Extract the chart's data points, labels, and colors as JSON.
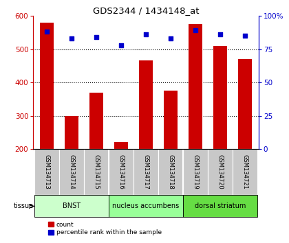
{
  "title": "GDS2344 / 1434148_at",
  "samples": [
    "GSM134713",
    "GSM134714",
    "GSM134715",
    "GSM134716",
    "GSM134717",
    "GSM134718",
    "GSM134719",
    "GSM134720",
    "GSM134721"
  ],
  "counts": [
    580,
    300,
    370,
    220,
    465,
    375,
    575,
    510,
    470
  ],
  "percentiles": [
    88,
    83,
    84,
    78,
    86,
    83,
    89,
    86,
    85
  ],
  "ylim_left": [
    200,
    600
  ],
  "ylim_right": [
    0,
    100
  ],
  "yticks_left": [
    200,
    300,
    400,
    500,
    600
  ],
  "yticks_right": [
    0,
    25,
    50,
    75,
    100
  ],
  "bar_color": "#cc0000",
  "dot_color": "#0000cc",
  "bar_bottom": 200,
  "tissues": [
    {
      "label": "BNST",
      "start": 0,
      "end": 3
    },
    {
      "label": "nucleus accumbens",
      "start": 3,
      "end": 6
    },
    {
      "label": "dorsal striatum",
      "start": 6,
      "end": 9
    }
  ],
  "tissue_colors": [
    "#ccffcc",
    "#99ff99",
    "#66dd44"
  ],
  "tissue_label": "tissue",
  "legend_count_label": "count",
  "legend_pct_label": "percentile rank within the sample",
  "background_color": "#ffffff",
  "sample_bg_color": "#c8c8c8",
  "grid_colors": [
    300,
    400,
    500
  ]
}
